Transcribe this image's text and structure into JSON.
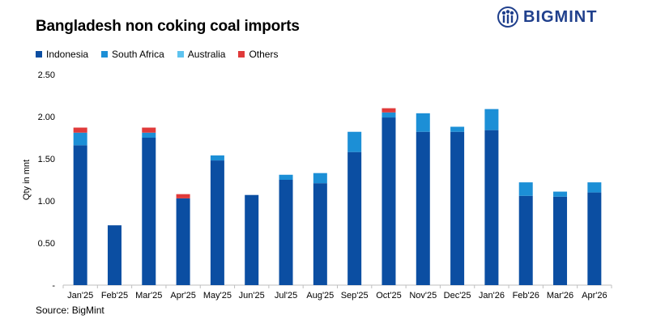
{
  "title": "Bangladesh non coking coal imports",
  "logo": {
    "text": "BIGMINT",
    "color": "#1f3f8c"
  },
  "source": "Source: BigMint",
  "legend": [
    {
      "name": "Indonesia",
      "color": "#0b4ea2"
    },
    {
      "name": "South Africa",
      "color": "#1c8fd6"
    },
    {
      "name": "Australia",
      "color": "#5ec3ef"
    },
    {
      "name": "Others",
      "color": "#e03a3a"
    }
  ],
  "chart_data": {
    "type": "bar",
    "stacked": true,
    "title": "Bangladesh non coking coal imports",
    "ylabel": "Qty in mnt",
    "xlabel": "",
    "ylim": [
      0,
      2.5
    ],
    "yticks": [
      "-",
      "0.50",
      "1.00",
      "1.50",
      "2.00",
      "2.50"
    ],
    "categories": [
      "Jan'25",
      "Feb'25",
      "Mar'25",
      "Apr'25",
      "May'25",
      "Jun'25",
      "Jul'25",
      "Aug'25",
      "Sep'25",
      "Oct'25",
      "Nov'25",
      "Dec'25",
      "Jan'26",
      "Feb'26",
      "Mar'26",
      "Apr'26"
    ],
    "series": [
      {
        "name": "Indonesia",
        "color": "#0b4ea2",
        "values": [
          1.66,
          0.71,
          1.75,
          1.03,
          1.48,
          1.07,
          1.25,
          1.21,
          1.58,
          1.99,
          1.82,
          1.82,
          1.84,
          1.06,
          1.05,
          1.1
        ]
      },
      {
        "name": "South Africa",
        "color": "#1c8fd6",
        "values": [
          0.15,
          0.0,
          0.06,
          0.0,
          0.06,
          0.0,
          0.06,
          0.12,
          0.24,
          0.06,
          0.22,
          0.06,
          0.25,
          0.16,
          0.06,
          0.12
        ]
      },
      {
        "name": "Australia",
        "color": "#5ec3ef",
        "values": [
          0.0,
          0.0,
          0.0,
          0.0,
          0.0,
          0.0,
          0.0,
          0.0,
          0.0,
          0.0,
          0.0,
          0.0,
          0.0,
          0.0,
          0.0,
          0.0
        ]
      },
      {
        "name": "Others",
        "color": "#e03a3a",
        "values": [
          0.06,
          0.0,
          0.06,
          0.05,
          0.0,
          0.0,
          0.0,
          0.0,
          0.0,
          0.05,
          0.0,
          0.0,
          0.0,
          0.0,
          0.0,
          0.0
        ]
      }
    ],
    "grid": true,
    "legend_position": "top-left"
  }
}
